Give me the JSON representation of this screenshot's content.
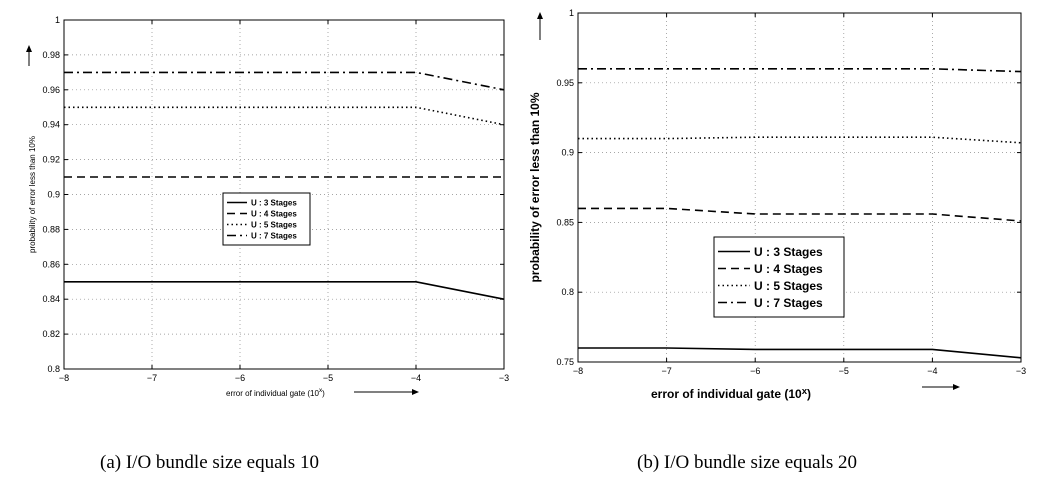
{
  "chart_data": [
    {
      "type": "line",
      "title": "",
      "xlabel": "error of individual gate (10",
      "xlabel_sup": "x",
      "xlabel_end": ")",
      "ylabel": "probability of error less than 10%",
      "xlim": [
        -8,
        -3
      ],
      "ylim": [
        0.8,
        1
      ],
      "xticks": [
        -8,
        -7,
        -6,
        -5,
        -4,
        -3
      ],
      "xtick_labels": [
        "−8",
        "−7",
        "−6",
        "−5",
        "−4",
        "−3"
      ],
      "yticks": [
        0.8,
        0.82,
        0.84,
        0.86,
        0.88,
        0.9,
        0.92,
        0.94,
        0.96,
        0.98,
        1
      ],
      "ytick_labels": [
        "0.8",
        "0.82",
        "0.84",
        "0.86",
        "0.88",
        "0.9",
        "0.92",
        "0.94",
        "0.96",
        "0.98",
        "1"
      ],
      "grid": true,
      "legend_position": "center",
      "series": [
        {
          "name": "U : 3 Stages",
          "style": "solid",
          "x": [
            -8,
            -4,
            -3
          ],
          "y": [
            0.85,
            0.85,
            0.84
          ]
        },
        {
          "name": "U : 4 Stages",
          "style": "dashed",
          "x": [
            -8,
            -4,
            -3
          ],
          "y": [
            0.91,
            0.91,
            0.91
          ]
        },
        {
          "name": "U : 5 Stages",
          "style": "dotted",
          "x": [
            -8,
            -4,
            -3
          ],
          "y": [
            0.95,
            0.95,
            0.94
          ]
        },
        {
          "name": "U : 7 Stages",
          "style": "dashdot",
          "x": [
            -8,
            -4,
            -3
          ],
          "y": [
            0.97,
            0.97,
            0.96
          ]
        }
      ]
    },
    {
      "type": "line",
      "title": "",
      "xlabel": "error of individual gate (10",
      "xlabel_sup": "x",
      "xlabel_end": ")",
      "ylabel": "probability of error less than 10%",
      "xlim": [
        -8,
        -3
      ],
      "ylim": [
        0.75,
        1
      ],
      "xticks": [
        -8,
        -7,
        -6,
        -5,
        -4,
        -3
      ],
      "xtick_labels": [
        "−8",
        "−7",
        "−6",
        "−5",
        "−4",
        "−3"
      ],
      "yticks": [
        0.75,
        0.8,
        0.85,
        0.9,
        0.95,
        1
      ],
      "ytick_labels": [
        "0.75",
        "0.8",
        "0.85",
        "0.9",
        "0.95",
        "1"
      ],
      "grid": true,
      "legend_position": "lower-center",
      "series": [
        {
          "name": "U : 3 Stages",
          "style": "solid",
          "x": [
            -8,
            -7,
            -6,
            -5,
            -4,
            -3
          ],
          "y": [
            0.76,
            0.76,
            0.759,
            0.759,
            0.759,
            0.753
          ]
        },
        {
          "name": "U : 4 Stages",
          "style": "dashed",
          "x": [
            -8,
            -7,
            -6,
            -5,
            -4,
            -3
          ],
          "y": [
            0.86,
            0.86,
            0.856,
            0.856,
            0.856,
            0.851
          ]
        },
        {
          "name": "U : 5 Stages",
          "style": "dotted",
          "x": [
            -8,
            -7,
            -6,
            -5,
            -4,
            -3
          ],
          "y": [
            0.91,
            0.91,
            0.911,
            0.911,
            0.911,
            0.907
          ]
        },
        {
          "name": "U : 7 Stages",
          "style": "dashdot",
          "x": [
            -8,
            -7,
            -6,
            -5,
            -4,
            -3
          ],
          "y": [
            0.96,
            0.96,
            0.96,
            0.96,
            0.96,
            0.958
          ]
        }
      ]
    }
  ],
  "captions": {
    "a": "(a) I/O bundle size equals 10",
    "b": "(b) I/O bundle size equals 20"
  }
}
